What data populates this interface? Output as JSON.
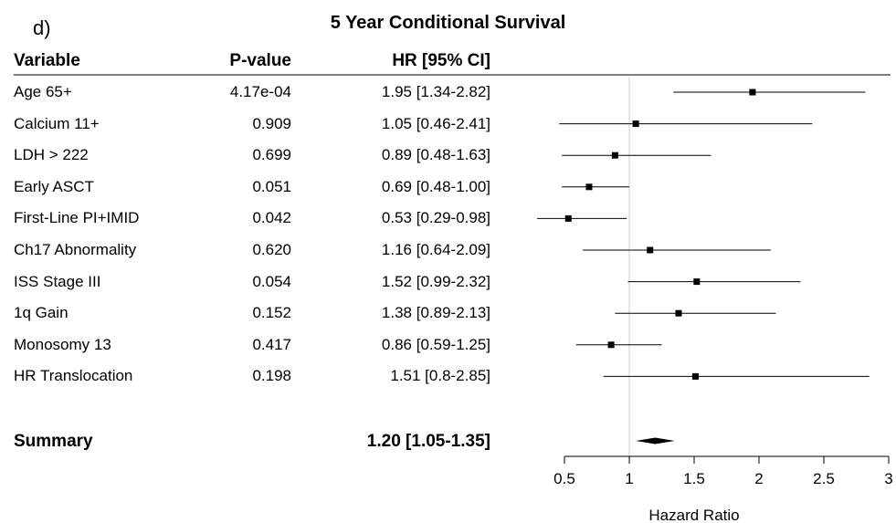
{
  "panel_label": "d)",
  "title": "5 Year Conditional Survival",
  "headers": {
    "variable": "Variable",
    "pvalue": "P-value",
    "hr": "HR [95% CI]"
  },
  "summary": {
    "label": "Summary",
    "hr_text": "1.20 [1.05-1.35]"
  },
  "chart_data": {
    "type": "forest",
    "title": "5 Year Conditional Survival",
    "xlabel": "Hazard Ratio",
    "xlim": [
      0.5,
      3
    ],
    "xticks": [
      0.5,
      1,
      1.5,
      2,
      2.5,
      3
    ],
    "xtick_labels": [
      "0.5",
      "1",
      "1.5",
      "2",
      "2.5",
      "3"
    ],
    "reference_line": 1,
    "rows": [
      {
        "variable": "Age 65+",
        "pvalue": "4.17e-04",
        "hr_text": "1.95 [1.34-2.82]",
        "hr": 1.95,
        "lower": 1.34,
        "upper": 2.82
      },
      {
        "variable": "Calcium 11+",
        "pvalue": "0.909",
        "hr_text": "1.05 [0.46-2.41]",
        "hr": 1.05,
        "lower": 0.46,
        "upper": 2.41
      },
      {
        "variable": "LDH > 222",
        "pvalue": "0.699",
        "hr_text": "0.89 [0.48-1.63]",
        "hr": 0.89,
        "lower": 0.48,
        "upper": 1.63
      },
      {
        "variable": "Early ASCT",
        "pvalue": "0.051",
        "hr_text": "0.69 [0.48-1.00]",
        "hr": 0.69,
        "lower": 0.48,
        "upper": 1.0
      },
      {
        "variable": "First-Line PI+IMID",
        "pvalue": "0.042",
        "hr_text": "0.53 [0.29-0.98]",
        "hr": 0.53,
        "lower": 0.29,
        "upper": 0.98
      },
      {
        "variable": "Ch17 Abnormality",
        "pvalue": "0.620",
        "hr_text": "1.16 [0.64-2.09]",
        "hr": 1.16,
        "lower": 0.64,
        "upper": 2.09
      },
      {
        "variable": "ISS Stage III",
        "pvalue": "0.054",
        "hr_text": "1.52 [0.99-2.32]",
        "hr": 1.52,
        "lower": 0.99,
        "upper": 2.32
      },
      {
        "variable": "1q Gain",
        "pvalue": "0.152",
        "hr_text": "1.38 [0.89-2.13]",
        "hr": 1.38,
        "lower": 0.89,
        "upper": 2.13
      },
      {
        "variable": "Monosomy 13",
        "pvalue": "0.417",
        "hr_text": "0.86 [0.59-1.25]",
        "hr": 0.86,
        "lower": 0.59,
        "upper": 1.25
      },
      {
        "variable": "HR Translocation",
        "pvalue": "0.198",
        "hr_text": "1.51 [0.8-2.85]",
        "hr": 1.51,
        "lower": 0.8,
        "upper": 2.85
      }
    ],
    "summary": {
      "label": "Summary",
      "hr": 1.2,
      "lower": 1.05,
      "upper": 1.35
    }
  }
}
